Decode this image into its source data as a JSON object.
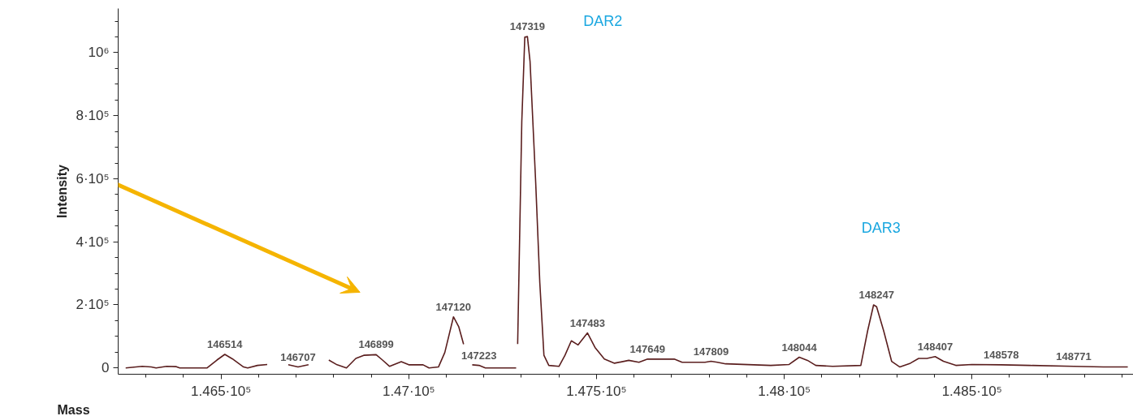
{
  "chart_data": {
    "type": "line",
    "xlabel": "Mass",
    "ylabel": "Intensity",
    "x": [
      146246,
      146290,
      146314,
      146327,
      146355,
      146381,
      146390,
      146463,
      146489,
      146510,
      146530,
      146560,
      146571,
      146597,
      146623,
      146650,
      146679,
      146705,
      146733,
      146760,
      146787,
      146809,
      146834,
      146859,
      146880,
      146913,
      146930,
      146949,
      146980,
      147000,
      147038,
      147054,
      147079,
      147096,
      147119,
      147133,
      147146,
      147158,
      147169,
      147187,
      147204,
      147286,
      147288,
      147290,
      147301,
      147309,
      147316,
      147323,
      147338,
      147349,
      147360,
      147373,
      147400,
      147416,
      147433,
      147451,
      147476,
      147496,
      147521,
      147548,
      147586,
      147613,
      147636,
      147707,
      147728,
      147789,
      147805,
      147822,
      147844,
      147964,
      148013,
      148040,
      148062,
      148084,
      148129,
      148204,
      148222,
      148238,
      148246,
      148265,
      148286,
      148308,
      148336,
      148358,
      148380,
      148402,
      148424,
      148457,
      148500,
      148578,
      148654,
      148771,
      148850,
      148915
    ],
    "series": [
      {
        "color": "#5a1e1e",
        "values": [
          0,
          5000,
          3000,
          0,
          5000,
          4000,
          0,
          0,
          25000,
          43000,
          29000,
          3000,
          0,
          8000,
          11000,
          null,
          10000,
          3000,
          10000,
          null,
          25000,
          10000,
          0,
          30000,
          40000,
          42000,
          25000,
          5000,
          20000,
          10000,
          10000,
          0,
          3000,
          49000,
          162000,
          131000,
          75000,
          null,
          10000,
          8000,
          0,
          0,
          null,
          76000,
          781000,
          1049000,
          1051000,
          972000,
          589000,
          270000,
          40000,
          8000,
          5000,
          40000,
          86000,
          73000,
          111000,
          65000,
          28000,
          15000,
          24000,
          18000,
          28000,
          28000,
          18000,
          18000,
          21000,
          18000,
          13000,
          8000,
          11000,
          34000,
          24000,
          8000,
          5000,
          8000,
          117000,
          200000,
          194000,
          117000,
          21000,
          3000,
          15000,
          30000,
          30000,
          36000,
          21000,
          8000,
          11000,
          10000,
          8000,
          5000,
          3000,
          3000
        ],
        "line_style": "solid"
      }
    ],
    "xlim": [
      146226,
      148930
    ],
    "ylim": [
      -20000,
      1140000
    ],
    "xticks": [
      {
        "value": 146500,
        "label": "1.465·10⁵"
      },
      {
        "value": 147000,
        "label": "1.47·10⁵"
      },
      {
        "value": 147500,
        "label": "1.475·10⁵"
      },
      {
        "value": 148000,
        "label": "1.48·10⁵"
      },
      {
        "value": 148500,
        "label": "1.485·10⁵"
      }
    ],
    "yticks": [
      0,
      {
        "value": 200000,
        "label": "2·10⁵"
      },
      {
        "value": 400000,
        "label": "4·10⁵"
      },
      {
        "value": 600000,
        "label": "6·10⁵"
      },
      {
        "value": 800000,
        "label": "8·10⁵"
      },
      {
        "value": 1000000,
        "label": "10⁶"
      }
    ],
    "annotations": [
      {
        "text": "146514",
        "x": 146510,
        "y": 43000
      },
      {
        "text": "146707",
        "x": 146705,
        "y": 3000
      },
      {
        "text": "146899",
        "x": 146913,
        "y": 42000
      },
      {
        "text": "147120",
        "x": 147119,
        "y": 162000
      },
      {
        "text": "147223",
        "x": 147187,
        "y": 8000
      },
      {
        "text": "147319",
        "x": 147316,
        "y": 1051000
      },
      {
        "text": "147483",
        "x": 147476,
        "y": 111000
      },
      {
        "text": "147649",
        "x": 147636,
        "y": 28000
      },
      {
        "text": "147809",
        "x": 147805,
        "y": 21000
      },
      {
        "text": "148044",
        "x": 148040,
        "y": 34000
      },
      {
        "text": "148247",
        "x": 148246,
        "y": 200000
      },
      {
        "text": "148407",
        "x": 148402,
        "y": 36000
      },
      {
        "text": "148578",
        "x": 148578,
        "y": 10000
      },
      {
        "text": "148771",
        "x": 148771,
        "y": 5000
      },
      "DAR2",
      "DAR3"
    ]
  }
}
